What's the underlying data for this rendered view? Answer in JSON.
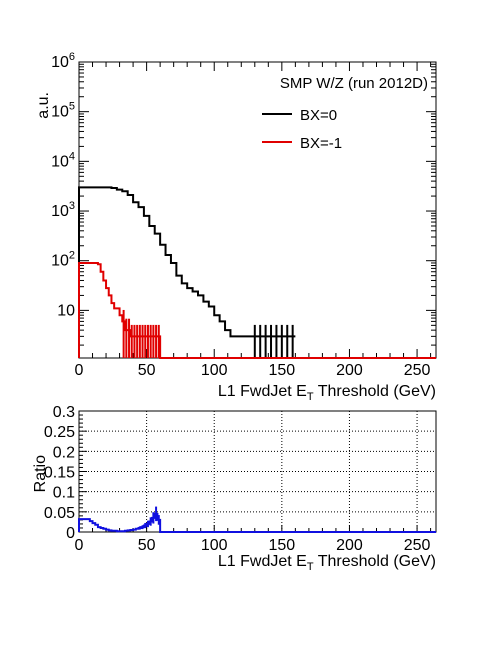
{
  "chart_data": [
    {
      "type": "line",
      "title": "",
      "annotation": "SMP W/Z (run 2012D)",
      "ylabel": "a.u.",
      "xlabel": "L1 FwdJet E",
      "xlabel_sub": "T",
      "xlabel_suffix": " Threshold (GeV)",
      "xlim": [
        0,
        264
      ],
      "ylim": [
        1.1,
        1000000
      ],
      "yscale": "log",
      "xticks": [
        0,
        50,
        100,
        150,
        200,
        250
      ],
      "xtick_labels": [
        "0",
        "50",
        "100",
        "150",
        "200",
        "250"
      ],
      "ytick_labels": [
        {
          "value": 10,
          "base": "10",
          "exp": ""
        },
        {
          "value": 100,
          "base": "10",
          "exp": "2"
        },
        {
          "value": 1000,
          "base": "10",
          "exp": "3"
        },
        {
          "value": 10000,
          "base": "10",
          "exp": "4"
        },
        {
          "value": 100000,
          "base": "10",
          "exp": "5"
        },
        {
          "value": 1000000,
          "base": "10",
          "exp": "6"
        }
      ],
      "legend": {
        "position": "top-right"
      },
      "series": [
        {
          "name": "BX=0",
          "color": "#000000",
          "bin_width": 4,
          "bin_edges_start": 0,
          "values": [
            3000,
            3000,
            3000,
            3000,
            3000,
            3000,
            2900,
            2700,
            2500,
            2100,
            1500,
            1200,
            800,
            500,
            350,
            210,
            130,
            90,
            50,
            35,
            28,
            24,
            20,
            15,
            12,
            8,
            6,
            4,
            3,
            3,
            3,
            3,
            3,
            3,
            3,
            3,
            3,
            3,
            3,
            3
          ],
          "err_from_bin": 32,
          "err_to_bin": 39
        },
        {
          "name": "BX=-1",
          "color": "#e00000",
          "bin_width": 2,
          "bin_edges_start": 0,
          "values": [
            90,
            90,
            90,
            90,
            90,
            90,
            90,
            85,
            60,
            40,
            28,
            20,
            14,
            11,
            11,
            8,
            6,
            4,
            4,
            3,
            3,
            3,
            3,
            3,
            3,
            3,
            3,
            3,
            3,
            3
          ],
          "err_from_bin": 16,
          "err_to_bin": 29,
          "tail_value": 1.1,
          "tail_to": 264
        }
      ]
    },
    {
      "type": "line",
      "title": "",
      "ylabel": "Ratio",
      "xlabel": "L1 FwdJet E",
      "xlabel_sub": "T",
      "xlabel_suffix": " Threshold (GeV)",
      "xlim": [
        0,
        264
      ],
      "ylim": [
        0,
        0.3
      ],
      "grid": true,
      "xticks": [
        0,
        50,
        100,
        150,
        200,
        250
      ],
      "xtick_labels": [
        "0",
        "50",
        "100",
        "150",
        "200",
        "250"
      ],
      "yticks": [
        0,
        0.05,
        0.1,
        0.15,
        0.2,
        0.25,
        0.3
      ],
      "ytick_labels": [
        "0",
        "0.05",
        "0.1",
        "0.15",
        "0.2",
        "0.25",
        "0.3"
      ],
      "series": [
        {
          "name": "",
          "color": "#1010e0",
          "bin_width": 2,
          "bin_edges_start": 0,
          "values": [
            0.032,
            0.032,
            0.032,
            0.032,
            0.027,
            0.022,
            0.018,
            0.012,
            0.01,
            0.008,
            0.006,
            0.004,
            0.003,
            0.003,
            0.002,
            0.002,
            0.002,
            0.003,
            0.004,
            0.005,
            0.006,
            0.008,
            0.01,
            0.012,
            0.016,
            0.02,
            0.026,
            0.035,
            0.045,
            0.03
          ],
          "err_from_bin": 22,
          "err_to_bin": 29,
          "tail_value": 0,
          "tail_to": 264
        }
      ]
    }
  ]
}
